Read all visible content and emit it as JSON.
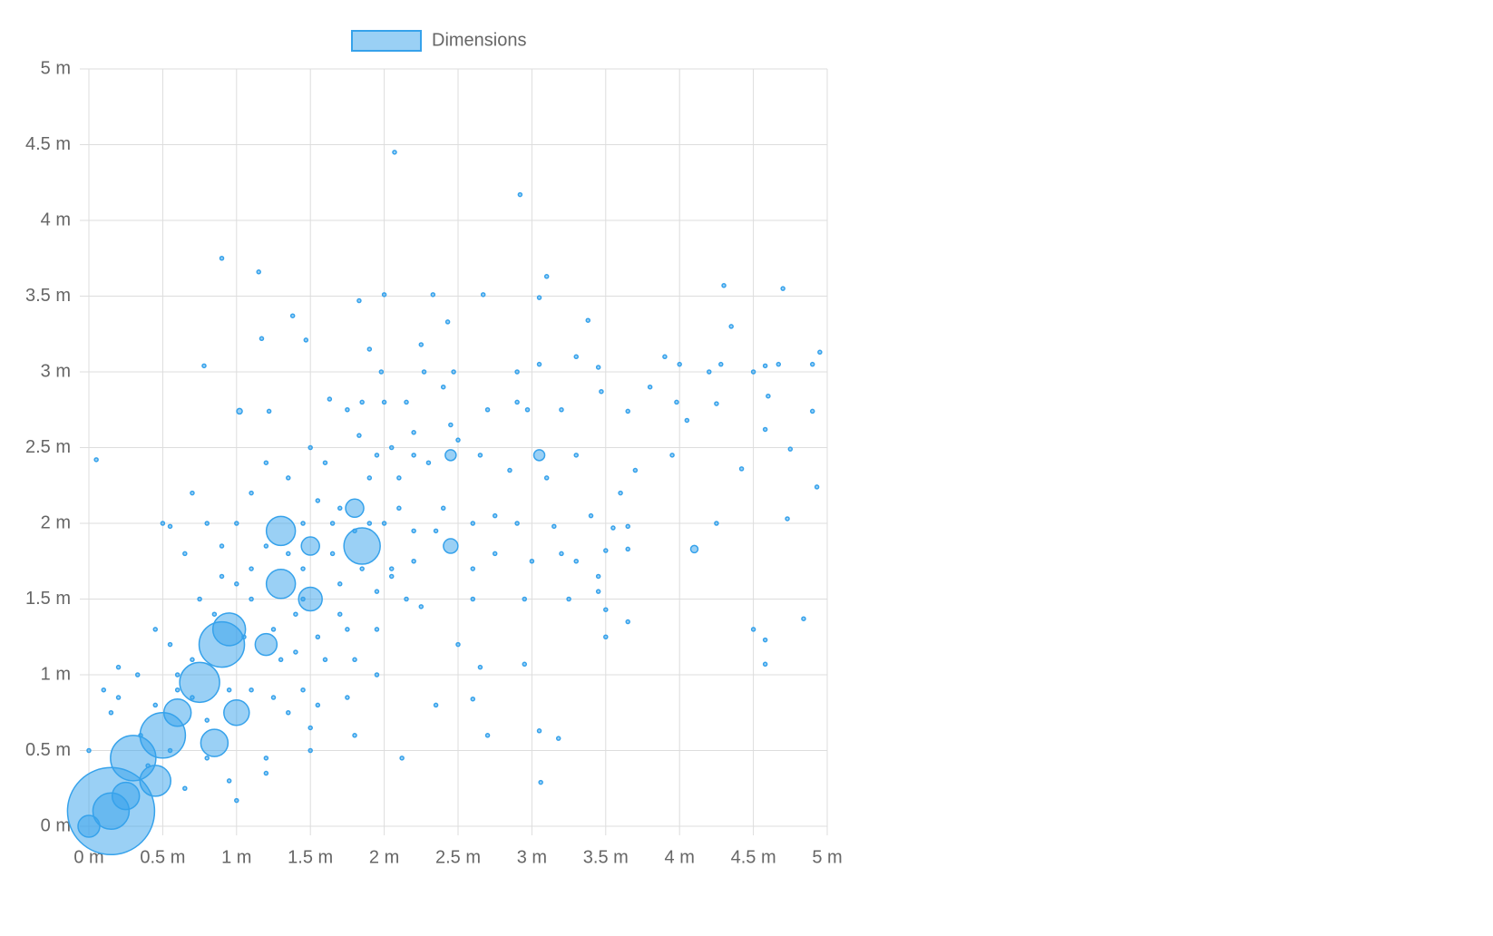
{
  "chart_data": {
    "type": "bubble",
    "xlim": [
      0,
      5
    ],
    "ylim": [
      0,
      5
    ],
    "xticks": [
      {
        "value": 0,
        "label": "0 m"
      },
      {
        "value": 0.5,
        "label": "0.5 m"
      },
      {
        "value": 1,
        "label": "1 m"
      },
      {
        "value": 1.5,
        "label": "1.5 m"
      },
      {
        "value": 2,
        "label": "2 m"
      },
      {
        "value": 2.5,
        "label": "2.5 m"
      },
      {
        "value": 3,
        "label": "3 m"
      },
      {
        "value": 3.5,
        "label": "3.5 m"
      },
      {
        "value": 4,
        "label": "4 m"
      },
      {
        "value": 4.5,
        "label": "4.5 m"
      },
      {
        "value": 5,
        "label": "5 m"
      }
    ],
    "yticks": [
      {
        "value": 0,
        "label": "0 m"
      },
      {
        "value": 0.5,
        "label": "0.5 m"
      },
      {
        "value": 1,
        "label": "1 m"
      },
      {
        "value": 1.5,
        "label": "1.5 m"
      },
      {
        "value": 2,
        "label": "2 m"
      },
      {
        "value": 2.5,
        "label": "2.5 m"
      },
      {
        "value": 3,
        "label": "3 m"
      },
      {
        "value": 3.5,
        "label": "3.5 m"
      },
      {
        "value": 4,
        "label": "4 m"
      },
      {
        "value": 4.5,
        "label": "4.5 m"
      },
      {
        "value": 5,
        "label": "5 m"
      }
    ],
    "grid": true,
    "legend": "top",
    "series": [
      {
        "name": "Dimensions",
        "color": "#36a2eb",
        "x": [
          0.15,
          0.15,
          0.0,
          0.3,
          0.5,
          0.9,
          0.95,
          0.75,
          1.3,
          1.85,
          1.3,
          1.5,
          1.5,
          1.2,
          0.45,
          0.6,
          1.0,
          1.8,
          2.45,
          2.45,
          3.05,
          0.85,
          0.25,
          0.05,
          0.9,
          1.15,
          2.07,
          2.92,
          3.1,
          4.3,
          4.7,
          4.35,
          4.95,
          0.78,
          1.17,
          1.38,
          1.47,
          1.83,
          2.0,
          2.33,
          2.67,
          3.05,
          3.38,
          2.43,
          1.98,
          2.27,
          2.47,
          2.9,
          3.3,
          3.45,
          3.05,
          3.9,
          4.0,
          4.2,
          4.28,
          4.5,
          4.58,
          4.67,
          4.9,
          1.02,
          1.22,
          1.63,
          1.83,
          2.05,
          2.2,
          2.5,
          2.7,
          2.9,
          2.97,
          3.2,
          3.47,
          3.65,
          3.8,
          3.98,
          4.05,
          4.25,
          4.6,
          4.9,
          3.95,
          4.42,
          4.75,
          4.58,
          4.93,
          3.7,
          3.6,
          3.3,
          3.1,
          2.85,
          2.65,
          2.3,
          2.1,
          1.9,
          1.6,
          1.5,
          1.2,
          1.1,
          0.7,
          0.5,
          0.55,
          0.8,
          0.9,
          0.65,
          1.0,
          1.65,
          2.0,
          2.2,
          2.35,
          2.6,
          2.75,
          2.9,
          3.15,
          3.4,
          3.55,
          3.65,
          4.25,
          4.73,
          3.5,
          3.65,
          3.45,
          3.3,
          3.2,
          3.0,
          2.75,
          2.6,
          2.2,
          2.05,
          1.85,
          1.7,
          1.45,
          1.1,
          0.9,
          1.95,
          2.15,
          2.6,
          2.95,
          3.25,
          3.45,
          3.5,
          3.65,
          3.5,
          4.5,
          4.84,
          4.58,
          4.58,
          2.65,
          2.95,
          2.5,
          2.25,
          1.95,
          1.75,
          1.55,
          1.4,
          1.6,
          1.8,
          1.95,
          2.35,
          2.6,
          1.75,
          1.55,
          1.25,
          1.45,
          1.1,
          1.35,
          1.5,
          1.8,
          2.12,
          2.7,
          3.05,
          3.18,
          3.06,
          1.5,
          1.2,
          1.2,
          0.95,
          1.0,
          0.8,
          0.65,
          0.0,
          0.1,
          0.2,
          0.15,
          0.33,
          0.2,
          0.45,
          0.55,
          0.7,
          0.6,
          0.75,
          0.85,
          1.0,
          1.1,
          1.2,
          1.35,
          1.4,
          1.7,
          2.05,
          1.65,
          1.3,
          0.95,
          0.7,
          0.55,
          0.4,
          0.35,
          0.45,
          0.6,
          0.8,
          1.05,
          1.25,
          1.45,
          1.8,
          1.9,
          2.1,
          2.4,
          1.7,
          1.55,
          1.45,
          1.35,
          1.95,
          2.2,
          2.45,
          1.85,
          2.15,
          2.0,
          2.4,
          1.75,
          1.9,
          2.25,
          4.1
        ],
        "values": [
          0.1,
          0.1,
          0.0,
          0.45,
          0.6,
          1.2,
          1.3,
          0.95,
          1.95,
          1.85,
          1.6,
          1.5,
          1.85,
          1.2,
          0.3,
          0.75,
          0.75,
          2.1,
          1.85,
          2.45,
          2.45,
          0.55,
          0.2,
          2.42,
          3.75,
          3.66,
          4.45,
          4.17,
          3.63,
          3.57,
          3.55,
          3.3,
          3.13,
          3.04,
          3.22,
          3.37,
          3.21,
          3.47,
          3.51,
          3.51,
          3.51,
          3.49,
          3.34,
          3.33,
          3.0,
          3.0,
          3.0,
          3.0,
          3.1,
          3.03,
          3.05,
          3.1,
          3.05,
          3.0,
          3.05,
          3.0,
          3.04,
          3.05,
          3.05,
          2.74,
          2.74,
          2.82,
          2.58,
          2.5,
          2.6,
          2.55,
          2.75,
          2.8,
          2.75,
          2.75,
          2.87,
          2.74,
          2.9,
          2.8,
          2.68,
          2.79,
          2.84,
          2.74,
          2.45,
          2.36,
          2.49,
          2.62,
          2.24,
          2.35,
          2.2,
          2.45,
          2.3,
          2.35,
          2.45,
          2.4,
          2.3,
          2.3,
          2.4,
          2.5,
          2.4,
          2.2,
          2.2,
          2.0,
          1.98,
          2.0,
          1.85,
          1.8,
          2.0,
          2.0,
          2.0,
          1.95,
          1.95,
          2.0,
          2.05,
          2.0,
          1.98,
          2.05,
          1.97,
          1.98,
          2.0,
          2.03,
          1.82,
          1.83,
          1.65,
          1.75,
          1.8,
          1.75,
          1.8,
          1.7,
          1.75,
          1.7,
          1.7,
          1.6,
          1.7,
          1.7,
          1.65,
          1.55,
          1.5,
          1.5,
          1.5,
          1.5,
          1.55,
          1.43,
          1.35,
          1.25,
          1.3,
          1.37,
          1.23,
          1.07,
          1.05,
          1.07,
          1.2,
          1.45,
          1.3,
          1.3,
          1.25,
          1.15,
          1.1,
          1.1,
          1.0,
          0.8,
          0.84,
          0.85,
          0.8,
          0.85,
          0.9,
          0.9,
          0.75,
          0.65,
          0.6,
          0.45,
          0.6,
          0.63,
          0.58,
          0.29,
          0.5,
          0.45,
          0.35,
          0.3,
          0.17,
          0.45,
          0.25,
          0.5,
          0.9,
          0.85,
          0.75,
          1.0,
          1.05,
          1.3,
          1.2,
          1.1,
          1.0,
          1.5,
          1.4,
          1.6,
          1.5,
          1.85,
          1.8,
          1.4,
          1.4,
          1.65,
          1.8,
          1.1,
          0.9,
          0.85,
          0.5,
          0.4,
          0.6,
          0.8,
          0.9,
          0.7,
          1.25,
          1.3,
          1.5,
          1.95,
          2.0,
          2.1,
          2.1,
          2.1,
          2.15,
          2.0,
          2.3,
          2.45,
          2.45,
          2.65,
          2.8,
          2.8,
          2.8,
          2.9,
          2.75,
          3.15,
          3.18,
          1.83
        ],
        "sizes": [
          48,
          20,
          12,
          25,
          25,
          25,
          18,
          22,
          16,
          20,
          16,
          13,
          10,
          12,
          17,
          15,
          14,
          10,
          8,
          6,
          6,
          15,
          15,
          2,
          2,
          2,
          2,
          2,
          2,
          2,
          2,
          2,
          2,
          2,
          2,
          2,
          2,
          2,
          2,
          2,
          2,
          2,
          2,
          2,
          2,
          2,
          2,
          2,
          2,
          2,
          2,
          2,
          2,
          2,
          2,
          2,
          2,
          2,
          2,
          3,
          2,
          2,
          2,
          2,
          2,
          2,
          2,
          2,
          2,
          2,
          2,
          2,
          2,
          2,
          2,
          2,
          2,
          2,
          2,
          2,
          2,
          2,
          2,
          2,
          2,
          2,
          2,
          2,
          2,
          2,
          2,
          2,
          2,
          2,
          2,
          2,
          2,
          2,
          2,
          2,
          2,
          2,
          2,
          2,
          2,
          2,
          2,
          2,
          2,
          2,
          2,
          2,
          2,
          2,
          2,
          2,
          2,
          2,
          2,
          2,
          2,
          2,
          2,
          2,
          2,
          2,
          2,
          2,
          2,
          2,
          2,
          2,
          2,
          2,
          2,
          2,
          2,
          2,
          2,
          2,
          2,
          2,
          2,
          2,
          2,
          2,
          2,
          2,
          2,
          2,
          2,
          2,
          2,
          2,
          2,
          2,
          2,
          2,
          2,
          2,
          2,
          2,
          2,
          2,
          2,
          2,
          2,
          2,
          2,
          2,
          2,
          2,
          2,
          2,
          2,
          2,
          2,
          2,
          2,
          2,
          2,
          2,
          2,
          2,
          2,
          2,
          2,
          2,
          2,
          2,
          2,
          2,
          2,
          2,
          2,
          2,
          2,
          2,
          2,
          2,
          2,
          2,
          2,
          2,
          2,
          2,
          2,
          2,
          2,
          2,
          2,
          2,
          2,
          2,
          2,
          2,
          2,
          2,
          2,
          2,
          2,
          2,
          2,
          2,
          2,
          2,
          2,
          4
        ]
      }
    ]
  }
}
